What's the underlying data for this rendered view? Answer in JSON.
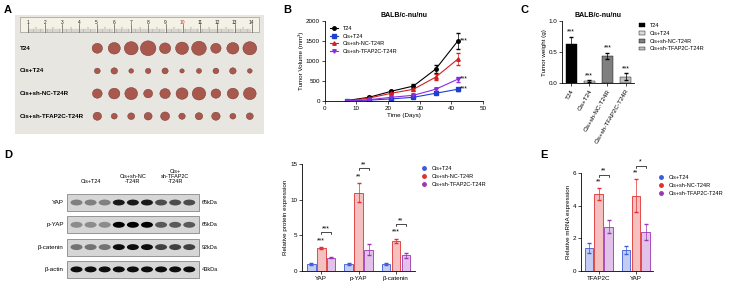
{
  "panel_labels": [
    "A",
    "B",
    "C",
    "D",
    "E"
  ],
  "photo": {
    "row_labels": [
      "T24",
      "Cis+T24",
      "Cis+sh-NC-T24R",
      "Cis+sh-TFAP2C-T24R"
    ],
    "ruler_labels": [
      1,
      2,
      3,
      4,
      5,
      6,
      7,
      8,
      9,
      10,
      11,
      12,
      13,
      14
    ]
  },
  "blot": {
    "bands": [
      {
        "name": "YAP",
        "size": "65kDa"
      },
      {
        "name": "p-YAP",
        "size": "65kDa"
      },
      {
        "name": "β-catenin",
        "size": "92kDa"
      },
      {
        "name": "β-actin",
        "size": "43kDa"
      }
    ],
    "groups": [
      "Cis+T24",
      "Cis+sh-NC\n-T24R",
      "Cis+\nsh-TFAP2C\n-T24R"
    ]
  },
  "chart_data": [
    {
      "type": "line",
      "title": "BALB/c-nu/nu",
      "x_label": "Time (Days)",
      "y_label": "Tumor Volume (mm³)",
      "x": [
        7,
        14,
        21,
        28,
        35,
        42
      ],
      "series": [
        {
          "name": "T24",
          "color": "#000000",
          "marker": "circle",
          "values": [
            20,
            100,
            250,
            380,
            800,
            1500
          ],
          "errors": [
            5,
            20,
            40,
            50,
            100,
            200
          ]
        },
        {
          "name": "Cis+T24",
          "color": "#1f3fd0",
          "marker": "square",
          "values": [
            10,
            30,
            60,
            100,
            200,
            300
          ],
          "errors": [
            3,
            8,
            10,
            15,
            30,
            40
          ]
        },
        {
          "name": "Cis+sh-NC-T24R",
          "color": "#d02020",
          "marker": "triangle",
          "values": [
            15,
            80,
            200,
            300,
            600,
            1050
          ],
          "errors": [
            5,
            15,
            30,
            40,
            80,
            150
          ]
        },
        {
          "name": "Cis+sh-TFAP2C-T24R",
          "color": "#8a2be2",
          "marker": "inverted_triangle",
          "values": [
            10,
            40,
            100,
            150,
            300,
            550
          ],
          "errors": [
            3,
            10,
            15,
            20,
            40,
            60
          ]
        }
      ],
      "xlim": [
        0,
        50
      ],
      "xticks": [
        0,
        10,
        20,
        30,
        40,
        50
      ],
      "ylim": [
        0,
        2000
      ],
      "yticks": [
        0,
        500,
        1000,
        1500,
        2000
      ],
      "legend": "upper left",
      "annotations": [
        {
          "text": "***",
          "series": "T24"
        },
        {
          "text": "***",
          "series": "Cis+sh-TFAP2C-T24R"
        },
        {
          "text": "***",
          "series": "Cis+T24"
        }
      ]
    },
    {
      "type": "bar",
      "title": "BALB/c-nu/nu",
      "y_label": "Tumor weight (g)",
      "categories": [
        "T24",
        "Cis+T24",
        "Cis+sh-NC-T24R",
        "Cis+sh-TFAP2C-T24R"
      ],
      "values": [
        0.63,
        0.04,
        0.44,
        0.11
      ],
      "errors": [
        0.12,
        0.01,
        0.05,
        0.05
      ],
      "colors": [
        "#000000",
        "#d9d9d9",
        "#7f7f7f",
        "#bfbfbf"
      ],
      "ylim": [
        0,
        1.0
      ],
      "yticks": [
        0.0,
        0.5,
        1.0
      ],
      "legend": "right",
      "annotations": [
        {
          "text": "***",
          "category": "T24"
        },
        {
          "text": "***",
          "category": "Cis+T24"
        },
        {
          "text": "***",
          "category": "Cis+sh-NC-T24R"
        },
        {
          "text": "***",
          "category": "Cis+sh-TFAP2C-T24R"
        }
      ]
    },
    {
      "type": "bar",
      "y_label": "Relative protein expression",
      "categories": [
        "YAP",
        "p-YAP",
        "β-catenin"
      ],
      "series": [
        {
          "name": "Cis+T24",
          "color": "#3b5bdb",
          "values": [
            1.0,
            1.0,
            1.0
          ],
          "errors": [
            0.2,
            0.15,
            0.15
          ]
        },
        {
          "name": "Cis+sh-NC-T24R",
          "color": "#e03131",
          "values": [
            3.2,
            11.0,
            4.2
          ],
          "errors": [
            0.15,
            1.3,
            0.3
          ]
        },
        {
          "name": "Cis+sh-TFAP2C-T24R",
          "color": "#9c36b5",
          "values": [
            1.9,
            3.0,
            2.2
          ],
          "errors": [
            0.1,
            0.8,
            0.3
          ]
        }
      ],
      "ylim": [
        0,
        15
      ],
      "yticks": [
        0,
        5,
        10,
        15
      ],
      "legend": "right",
      "annotations": [
        {
          "text": "***",
          "category": "YAP",
          "series": "Cis+sh-NC-T24R"
        },
        {
          "text": "***",
          "category": "YAP",
          "from": "Cis+sh-NC-T24R",
          "to": "Cis+sh-TFAP2C-T24R"
        },
        {
          "text": "**",
          "category": "p-YAP",
          "series": "Cis+sh-NC-T24R"
        },
        {
          "text": "**",
          "category": "p-YAP",
          "from": "Cis+sh-NC-T24R",
          "to": "Cis+sh-TFAP2C-T24R"
        },
        {
          "text": "***",
          "category": "β-catenin",
          "series": "Cis+sh-NC-T24R"
        },
        {
          "text": "**",
          "category": "β-catenin",
          "from": "Cis+sh-NC-T24R",
          "to": "Cis+sh-TFAP2C-T24R"
        }
      ]
    },
    {
      "type": "bar",
      "y_label": "Relative mRNA expression",
      "categories": [
        "TFAP2C",
        "YAP"
      ],
      "series": [
        {
          "name": "Cis+T24",
          "color": "#3b5bdb",
          "values": [
            1.4,
            1.3
          ],
          "errors": [
            0.3,
            0.25
          ]
        },
        {
          "name": "Cis+sh-NC-T24R",
          "color": "#e03131",
          "values": [
            4.7,
            4.6
          ],
          "errors": [
            0.35,
            1.0
          ]
        },
        {
          "name": "Cis+sh-TFAP2C-T24R",
          "color": "#9c36b5",
          "values": [
            2.7,
            2.4
          ],
          "errors": [
            0.4,
            0.5
          ]
        }
      ],
      "ylim": [
        0,
        6
      ],
      "yticks": [
        0,
        2,
        4,
        6
      ],
      "legend": "right",
      "annotations": [
        {
          "text": "**",
          "category": "TFAP2C",
          "series": "Cis+sh-NC-T24R"
        },
        {
          "text": "**",
          "category": "TFAP2C",
          "from": "Cis+sh-NC-T24R",
          "to": "Cis+sh-TFAP2C-T24R"
        },
        {
          "text": "**",
          "category": "YAP",
          "series": "Cis+sh-NC-T24R"
        },
        {
          "text": "*",
          "category": "YAP",
          "from": "Cis+sh-NC-T24R",
          "to": "Cis+sh-TFAP2C-T24R"
        }
      ]
    }
  ]
}
